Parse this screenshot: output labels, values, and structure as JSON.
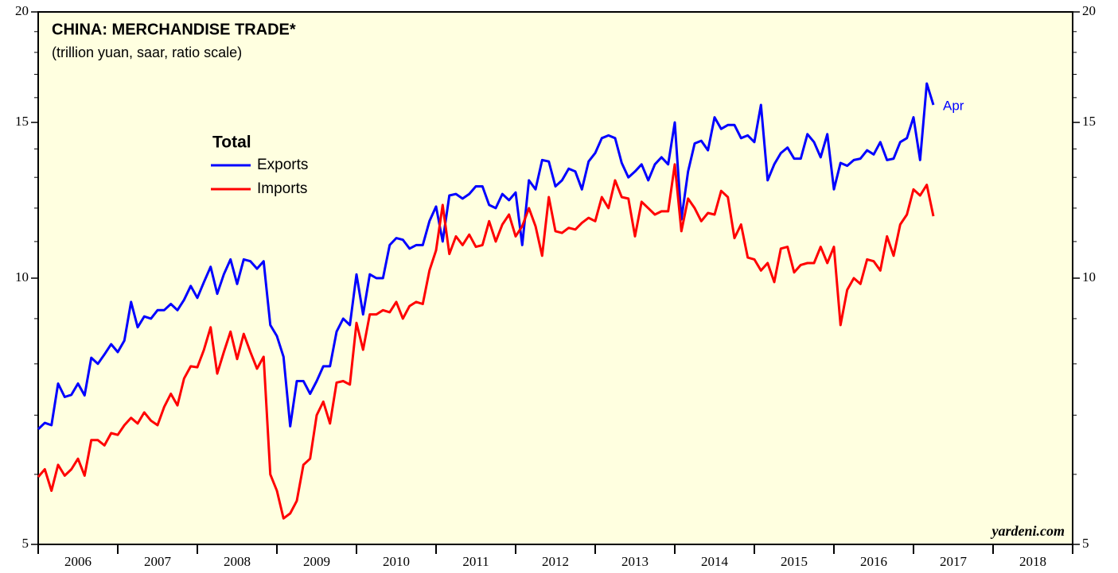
{
  "chart_data": {
    "type": "line",
    "title": "CHINA: MERCHANDISE TRADE*",
    "subtitle": "(trillion yuan, saar, ratio scale)",
    "legend_title": "Total",
    "annotation": "Apr",
    "source": "yardeni.com",
    "log_scale": true,
    "ylim": [
      5,
      20
    ],
    "yticks": [
      5,
      10,
      15,
      20
    ],
    "yminor_ticks": [
      6,
      7,
      8,
      9,
      11,
      12,
      13,
      14,
      16,
      17,
      18,
      19
    ],
    "xlim": [
      2006,
      2019
    ],
    "xticks": [
      2006,
      2007,
      2008,
      2009,
      2010,
      2011,
      2012,
      2013,
      2014,
      2015,
      2016,
      2017,
      2018,
      2019
    ],
    "xtick_labels": [
      {
        "value": 2006.5,
        "label": "2006"
      },
      {
        "value": 2007.5,
        "label": "2007"
      },
      {
        "value": 2008.5,
        "label": "2008"
      },
      {
        "value": 2009.5,
        "label": "2009"
      },
      {
        "value": 2010.5,
        "label": "2010"
      },
      {
        "value": 2011.5,
        "label": "2011"
      },
      {
        "value": 2012.5,
        "label": "2012"
      },
      {
        "value": 2013.5,
        "label": "2013"
      },
      {
        "value": 2014.5,
        "label": "2014"
      },
      {
        "value": 2015.5,
        "label": "2015"
      },
      {
        "value": 2016.5,
        "label": "2016"
      },
      {
        "value": 2017.5,
        "label": "2017"
      },
      {
        "value": 2018.5,
        "label": "2018"
      }
    ],
    "x": [
      "2006-01",
      "2006-02",
      "2006-03",
      "2006-04",
      "2006-05",
      "2006-06",
      "2006-07",
      "2006-08",
      "2006-09",
      "2006-10",
      "2006-11",
      "2006-12",
      "2007-01",
      "2007-02",
      "2007-03",
      "2007-04",
      "2007-05",
      "2007-06",
      "2007-07",
      "2007-08",
      "2007-09",
      "2007-10",
      "2007-11",
      "2007-12",
      "2008-01",
      "2008-02",
      "2008-03",
      "2008-04",
      "2008-05",
      "2008-06",
      "2008-07",
      "2008-08",
      "2008-09",
      "2008-10",
      "2008-11",
      "2008-12",
      "2009-01",
      "2009-02",
      "2009-03",
      "2009-04",
      "2009-05",
      "2009-06",
      "2009-07",
      "2009-08",
      "2009-09",
      "2009-10",
      "2009-11",
      "2009-12",
      "2010-01",
      "2010-02",
      "2010-03",
      "2010-04",
      "2010-05",
      "2010-06",
      "2010-07",
      "2010-08",
      "2010-09",
      "2010-10",
      "2010-11",
      "2010-12",
      "2011-01",
      "2011-02",
      "2011-03",
      "2011-04",
      "2011-05",
      "2011-06",
      "2011-07",
      "2011-08",
      "2011-09",
      "2011-10",
      "2011-11",
      "2011-12",
      "2012-01",
      "2012-02",
      "2012-03",
      "2012-04",
      "2012-05",
      "2012-06",
      "2012-07",
      "2012-08",
      "2012-09",
      "2012-10",
      "2012-11",
      "2012-12",
      "2013-01",
      "2013-02",
      "2013-03",
      "2013-04",
      "2013-05",
      "2013-06",
      "2013-07",
      "2013-08",
      "2013-09",
      "2013-10",
      "2013-11",
      "2013-12",
      "2014-01",
      "2014-02",
      "2014-03",
      "2014-04",
      "2014-05",
      "2014-06",
      "2014-07",
      "2014-08",
      "2014-09",
      "2014-10",
      "2014-11",
      "2014-12",
      "2015-01",
      "2015-02",
      "2015-03",
      "2015-04",
      "2015-05",
      "2015-06",
      "2015-07",
      "2015-08",
      "2015-09",
      "2015-10",
      "2015-11",
      "2015-12",
      "2016-01",
      "2016-02",
      "2016-03",
      "2016-04",
      "2016-05",
      "2016-06",
      "2016-07",
      "2016-08",
      "2016-09",
      "2016-10",
      "2016-11",
      "2016-12",
      "2017-01",
      "2017-02",
      "2017-03",
      "2017-04"
    ],
    "series": [
      {
        "name": "Exports",
        "color": "#0000ff",
        "values": [
          6.75,
          6.86,
          6.82,
          7.6,
          7.34,
          7.38,
          7.6,
          7.37,
          8.13,
          8.0,
          8.2,
          8.42,
          8.25,
          8.5,
          9.4,
          8.8,
          9.05,
          9.0,
          9.2,
          9.2,
          9.35,
          9.2,
          9.45,
          9.8,
          9.5,
          9.9,
          10.3,
          9.6,
          10.1,
          10.5,
          9.85,
          10.5,
          10.45,
          10.25,
          10.45,
          8.85,
          8.6,
          8.15,
          6.8,
          7.65,
          7.65,
          7.4,
          7.65,
          7.95,
          7.95,
          8.7,
          9.0,
          8.85,
          10.1,
          9.1,
          10.1,
          10.0,
          10.0,
          10.9,
          11.1,
          11.05,
          10.8,
          10.9,
          10.9,
          11.6,
          12.05,
          11.0,
          12.4,
          12.45,
          12.3,
          12.45,
          12.7,
          12.7,
          12.1,
          12.0,
          12.45,
          12.25,
          12.5,
          10.9,
          12.9,
          12.6,
          13.6,
          13.55,
          12.7,
          12.9,
          13.3,
          13.2,
          12.6,
          13.55,
          13.85,
          14.4,
          14.5,
          14.4,
          13.5,
          13.0,
          13.2,
          13.45,
          12.9,
          13.45,
          13.7,
          13.45,
          15.0,
          11.65,
          13.2,
          14.2,
          14.3,
          13.95,
          15.2,
          14.75,
          14.9,
          14.9,
          14.4,
          14.5,
          14.25,
          15.7,
          12.9,
          13.45,
          13.85,
          14.05,
          13.65,
          13.65,
          14.55,
          14.25,
          13.7,
          14.55,
          12.6,
          13.5,
          13.4,
          13.6,
          13.65,
          13.95,
          13.8,
          14.25,
          13.6,
          13.65,
          14.25,
          14.4,
          15.2,
          13.6,
          16.6,
          15.7
        ]
      },
      {
        "name": "Imports",
        "color": "#ff0000",
        "values": [
          5.96,
          6.08,
          5.75,
          6.15,
          5.98,
          6.08,
          6.25,
          5.98,
          6.56,
          6.56,
          6.47,
          6.68,
          6.65,
          6.82,
          6.95,
          6.85,
          7.05,
          6.9,
          6.82,
          7.15,
          7.4,
          7.18,
          7.7,
          7.95,
          7.93,
          8.3,
          8.8,
          7.8,
          8.25,
          8.7,
          8.1,
          8.65,
          8.25,
          7.9,
          8.15,
          6.0,
          5.75,
          5.35,
          5.42,
          5.6,
          6.15,
          6.25,
          7.0,
          7.25,
          6.85,
          7.62,
          7.65,
          7.58,
          8.9,
          8.3,
          9.1,
          9.1,
          9.2,
          9.15,
          9.4,
          9.0,
          9.3,
          9.4,
          9.35,
          10.2,
          10.75,
          12.1,
          10.65,
          11.15,
          10.9,
          11.2,
          10.85,
          10.9,
          11.6,
          11.0,
          11.5,
          11.8,
          11.15,
          11.45,
          12.0,
          11.45,
          10.6,
          12.35,
          11.3,
          11.25,
          11.4,
          11.35,
          11.55,
          11.7,
          11.6,
          12.35,
          12.0,
          12.9,
          12.35,
          12.3,
          11.15,
          12.2,
          12.0,
          11.8,
          11.9,
          11.9,
          13.45,
          11.3,
          12.3,
          12.0,
          11.6,
          11.85,
          11.8,
          12.55,
          12.35,
          11.1,
          11.5,
          10.55,
          10.5,
          10.2,
          10.4,
          9.9,
          10.8,
          10.85,
          10.15,
          10.35,
          10.4,
          10.4,
          10.85,
          10.4,
          10.85,
          8.85,
          9.7,
          10.0,
          9.85,
          10.5,
          10.45,
          10.2,
          11.15,
          10.6,
          11.5,
          11.8,
          12.6,
          12.4,
          12.75,
          11.75
        ]
      }
    ]
  }
}
